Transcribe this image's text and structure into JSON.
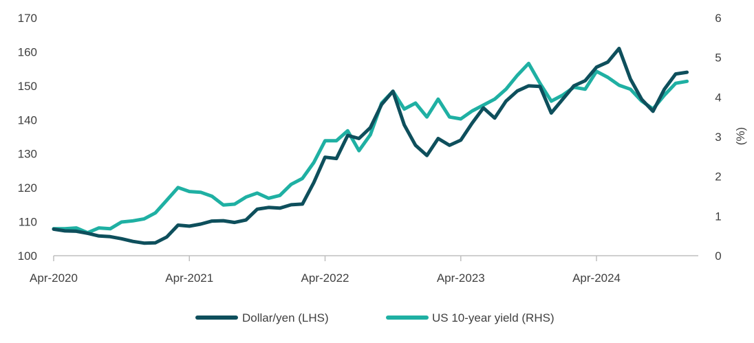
{
  "chart_data": {
    "type": "line",
    "title": "",
    "xlabel": "",
    "ylabel_left": "",
    "ylabel_right": "(%)",
    "x_start": "2020-04",
    "x_end": "2025-01",
    "x_ticks": [
      "Apr-2020",
      "Apr-2021",
      "Apr-2022",
      "Apr-2023",
      "Apr-2024"
    ],
    "x_tick_dates": [
      "2020-04",
      "2021-04",
      "2022-04",
      "2023-04",
      "2024-04"
    ],
    "ylim_left": [
      100,
      170
    ],
    "yticks_left": [
      "100",
      "110",
      "120",
      "130",
      "140",
      "150",
      "160",
      "170"
    ],
    "ylim_right": [
      0,
      6
    ],
    "yticks_right": [
      "0",
      "1",
      "2",
      "3",
      "4",
      "5",
      "6"
    ],
    "grid": false,
    "legend_position": "bottom",
    "series": [
      {
        "name": "Dollar/yen (LHS)",
        "axis": "left",
        "color": "#0e4f5c",
        "points": [
          [
            "2020-04",
            107.8
          ],
          [
            "2020-05",
            107.3
          ],
          [
            "2020-06",
            107.2
          ],
          [
            "2020-07",
            106.6
          ],
          [
            "2020-08",
            105.8
          ],
          [
            "2020-09",
            105.6
          ],
          [
            "2020-10",
            105.0
          ],
          [
            "2020-11",
            104.2
          ],
          [
            "2020-12",
            103.7
          ],
          [
            "2021-01",
            103.8
          ],
          [
            "2021-02",
            105.5
          ],
          [
            "2021-03",
            109.0
          ],
          [
            "2021-04",
            108.7
          ],
          [
            "2021-05",
            109.3
          ],
          [
            "2021-06",
            110.2
          ],
          [
            "2021-07",
            110.3
          ],
          [
            "2021-08",
            109.8
          ],
          [
            "2021-09",
            110.5
          ],
          [
            "2021-10",
            113.7
          ],
          [
            "2021-11",
            114.2
          ],
          [
            "2021-12",
            114.0
          ],
          [
            "2022-01",
            115.0
          ],
          [
            "2022-02",
            115.2
          ],
          [
            "2022-03",
            121.5
          ],
          [
            "2022-04",
            129.0
          ],
          [
            "2022-05",
            128.6
          ],
          [
            "2022-06",
            135.4
          ],
          [
            "2022-07",
            134.5
          ],
          [
            "2022-08",
            137.7
          ],
          [
            "2022-09",
            144.5
          ],
          [
            "2022-10",
            148.4
          ],
          [
            "2022-11",
            138.5
          ],
          [
            "2022-12",
            132.5
          ],
          [
            "2023-01",
            129.5
          ],
          [
            "2023-02",
            134.5
          ],
          [
            "2023-03",
            132.5
          ],
          [
            "2023-04",
            134.0
          ],
          [
            "2023-05",
            139.0
          ],
          [
            "2023-06",
            143.5
          ],
          [
            "2023-07",
            140.5
          ],
          [
            "2023-08",
            145.5
          ],
          [
            "2023-09",
            148.5
          ],
          [
            "2023-10",
            150.0
          ],
          [
            "2023-11",
            149.8
          ],
          [
            "2023-12",
            142.0
          ],
          [
            "2024-01",
            146.0
          ],
          [
            "2024-02",
            150.0
          ],
          [
            "2024-03",
            151.5
          ],
          [
            "2024-04",
            155.5
          ],
          [
            "2024-05",
            157.0
          ],
          [
            "2024-06",
            161.0
          ],
          [
            "2024-07",
            152.0
          ],
          [
            "2024-08",
            146.0
          ],
          [
            "2024-09",
            142.5
          ],
          [
            "2024-10",
            149.0
          ],
          [
            "2024-11",
            153.5
          ],
          [
            "2024-12",
            154.0
          ]
        ]
      },
      {
        "name": "US 10-year yield (RHS)",
        "axis": "right",
        "color": "#1fb0a3",
        "points": [
          [
            "2020-04",
            0.68
          ],
          [
            "2020-05",
            0.68
          ],
          [
            "2020-06",
            0.7
          ],
          [
            "2020-07",
            0.58
          ],
          [
            "2020-08",
            0.7
          ],
          [
            "2020-09",
            0.68
          ],
          [
            "2020-10",
            0.85
          ],
          [
            "2020-11",
            0.88
          ],
          [
            "2020-12",
            0.93
          ],
          [
            "2021-01",
            1.08
          ],
          [
            "2021-02",
            1.4
          ],
          [
            "2021-03",
            1.72
          ],
          [
            "2021-04",
            1.62
          ],
          [
            "2021-05",
            1.6
          ],
          [
            "2021-06",
            1.5
          ],
          [
            "2021-07",
            1.28
          ],
          [
            "2021-08",
            1.3
          ],
          [
            "2021-09",
            1.48
          ],
          [
            "2021-10",
            1.58
          ],
          [
            "2021-11",
            1.45
          ],
          [
            "2021-12",
            1.52
          ],
          [
            "2022-01",
            1.8
          ],
          [
            "2022-02",
            1.95
          ],
          [
            "2022-03",
            2.35
          ],
          [
            "2022-04",
            2.9
          ],
          [
            "2022-05",
            2.9
          ],
          [
            "2022-06",
            3.15
          ],
          [
            "2022-07",
            2.65
          ],
          [
            "2022-08",
            3.05
          ],
          [
            "2022-09",
            3.85
          ],
          [
            "2022-10",
            4.15
          ],
          [
            "2022-11",
            3.7
          ],
          [
            "2022-12",
            3.85
          ],
          [
            "2023-01",
            3.5
          ],
          [
            "2023-02",
            3.95
          ],
          [
            "2023-03",
            3.5
          ],
          [
            "2023-04",
            3.45
          ],
          [
            "2023-05",
            3.65
          ],
          [
            "2023-06",
            3.8
          ],
          [
            "2023-07",
            3.95
          ],
          [
            "2023-08",
            4.2
          ],
          [
            "2023-09",
            4.55
          ],
          [
            "2023-10",
            4.85
          ],
          [
            "2023-11",
            4.35
          ],
          [
            "2023-12",
            3.9
          ],
          [
            "2024-01",
            4.05
          ],
          [
            "2024-02",
            4.25
          ],
          [
            "2024-03",
            4.2
          ],
          [
            "2024-04",
            4.65
          ],
          [
            "2024-05",
            4.5
          ],
          [
            "2024-06",
            4.3
          ],
          [
            "2024-07",
            4.2
          ],
          [
            "2024-08",
            3.9
          ],
          [
            "2024-09",
            3.7
          ],
          [
            "2024-10",
            4.05
          ],
          [
            "2024-11",
            4.35
          ],
          [
            "2024-12",
            4.4
          ]
        ]
      }
    ]
  }
}
